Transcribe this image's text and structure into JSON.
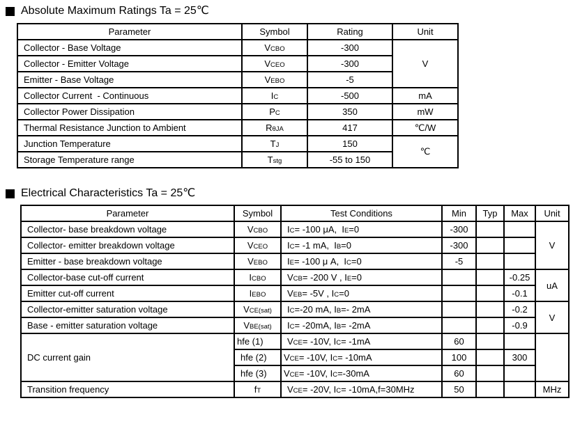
{
  "page": {
    "background_color": "#ffffff",
    "text_color": "#000000",
    "border_color": "#000000"
  },
  "sections": [
    {
      "bullet": "black-square",
      "title": "Absolute Maximum Ratings Ta = 25℃",
      "table": {
        "headers": [
          "Parameter",
          "Symbol",
          "Rating",
          "Unit"
        ],
        "rows": [
          {
            "cells": [
              {
                "t": "Collector - Base Voltage",
                "a": "l"
              },
              {
                "t": "V{CBO}"
              },
              {
                "t": "-300"
              },
              {
                "t": "V",
                "rs": 3
              }
            ]
          },
          {
            "cells": [
              {
                "t": "Collector - Emitter Voltage",
                "a": "l"
              },
              {
                "t": "V{CEO}"
              },
              {
                "t": "-300"
              }
            ]
          },
          {
            "cells": [
              {
                "t": "Emitter - Base Voltage",
                "a": "l"
              },
              {
                "t": "V{EBO}"
              },
              {
                "t": "-5"
              }
            ]
          },
          {
            "cells": [
              {
                "t": "Collector Current  - Continuous",
                "a": "l"
              },
              {
                "t": "I{C}"
              },
              {
                "t": "-500"
              },
              {
                "t": "mA"
              }
            ]
          },
          {
            "cells": [
              {
                "t": "Collector Power Dissipation",
                "a": "l"
              },
              {
                "t": "P{C}"
              },
              {
                "t": "350"
              },
              {
                "t": "mW"
              }
            ]
          },
          {
            "cells": [
              {
                "t": "Thermal Resistance Junction to Ambient",
                "a": "l"
              },
              {
                "t": "R{θJA}"
              },
              {
                "t": "417"
              },
              {
                "t": "℃/W"
              }
            ]
          },
          {
            "cells": [
              {
                "t": "Junction Temperature",
                "a": "l"
              },
              {
                "t": "T{J}"
              },
              {
                "t": "150"
              },
              {
                "t": "℃",
                "rs": 2
              }
            ]
          },
          {
            "cells": [
              {
                "t": "Storage Temperature range",
                "a": "l"
              },
              {
                "t": "T{stg}"
              },
              {
                "t": "-55 to 150"
              }
            ]
          }
        ]
      }
    },
    {
      "bullet": "black-square",
      "title": "Electrical Characteristics Ta = 25℃",
      "table": {
        "headers": [
          "Parameter",
          "Symbol",
          "Test Conditions",
          "Min",
          "Typ",
          "Max",
          "Unit"
        ],
        "rows": [
          {
            "cells": [
              {
                "t": "Collector- base breakdown voltage",
                "a": "l"
              },
              {
                "t": "V{CBO}"
              },
              {
                "t": "I{C}= -100 μA,  I{E}=0",
                "a": "l"
              },
              {
                "t": "-300"
              },
              {
                "t": ""
              },
              {
                "t": ""
              },
              {
                "t": "V",
                "rs": 3
              }
            ]
          },
          {
            "cells": [
              {
                "t": "Collector- emitter breakdown voltage",
                "a": "l"
              },
              {
                "t": "V{CEO}"
              },
              {
                "t": "I{C}= -1 mA,  I{B}=0",
                "a": "l"
              },
              {
                "t": "-300"
              },
              {
                "t": ""
              },
              {
                "t": ""
              }
            ]
          },
          {
            "cells": [
              {
                "t": "Emitter - base breakdown voltage",
                "a": "l"
              },
              {
                "t": "V{EBO}"
              },
              {
                "t": "I{E}= -100 μ A,  I{C}=0",
                "a": "l"
              },
              {
                "t": "-5"
              },
              {
                "t": ""
              },
              {
                "t": ""
              }
            ]
          },
          {
            "cells": [
              {
                "t": "Collector-base cut-off current",
                "a": "l"
              },
              {
                "t": "I{CBO}"
              },
              {
                "t": "V{CB}= -200 V , I{E}=0",
                "a": "l"
              },
              {
                "t": ""
              },
              {
                "t": ""
              },
              {
                "t": "-0.25"
              },
              {
                "t": "uA",
                "rs": 2
              }
            ]
          },
          {
            "cells": [
              {
                "t": "Emitter cut-off current",
                "a": "l"
              },
              {
                "t": "I{EBO}"
              },
              {
                "t": "V{EB}= -5V , I{C}=0",
                "a": "l"
              },
              {
                "t": ""
              },
              {
                "t": ""
              },
              {
                "t": "-0.1"
              }
            ]
          },
          {
            "cells": [
              {
                "t": "Collector-emitter saturation voltage",
                "a": "l"
              },
              {
                "t": "V{CE(sat)}"
              },
              {
                "t": "I{C}=-20 mA, I{B}=- 2mA",
                "a": "l"
              },
              {
                "t": ""
              },
              {
                "t": ""
              },
              {
                "t": "-0.2"
              },
              {
                "t": "V",
                "rs": 2
              }
            ]
          },
          {
            "cells": [
              {
                "t": "Base - emitter saturation voltage",
                "a": "l"
              },
              {
                "t": "V{BE(sat)}"
              },
              {
                "t": "I{C}= -20mA, I{B}= -2mA",
                "a": "l"
              },
              {
                "t": ""
              },
              {
                "t": ""
              },
              {
                "t": "-0.9"
              }
            ]
          },
          {
            "cells": [
              {
                "t": "DC current gain",
                "a": "l",
                "rs": 3
              },
              {
                "t": "hfe (1)",
                "a": "l"
              },
              {
                "t": "V{CE}= -10V, I{C}= -1mA",
                "a": "l"
              },
              {
                "t": "60"
              },
              {
                "t": ""
              },
              {
                "t": ""
              },
              {
                "t": "",
                "rs": 3
              }
            ]
          },
          {
            "cells": [
              {
                "t": "hfe (2)",
                "a": "l"
              },
              {
                "t": "V{CE}= -10V, I{C}= -10mA",
                "a": "l"
              },
              {
                "t": "100"
              },
              {
                "t": ""
              },
              {
                "t": "300"
              }
            ]
          },
          {
            "cells": [
              {
                "t": "hfe (3)",
                "a": "l"
              },
              {
                "t": "V{CE}= -10V, I{C}=-30mA",
                "a": "l"
              },
              {
                "t": "60"
              },
              {
                "t": ""
              },
              {
                "t": ""
              }
            ]
          },
          {
            "cells": [
              {
                "t": "Transition frequency",
                "a": "l"
              },
              {
                "t": "f{T}"
              },
              {
                "t": "V{CE}= -20V, I{C}= -10mA,f=30MHz",
                "a": "l"
              },
              {
                "t": "50"
              },
              {
                "t": ""
              },
              {
                "t": ""
              },
              {
                "t": "MHz"
              }
            ]
          }
        ]
      }
    }
  ]
}
